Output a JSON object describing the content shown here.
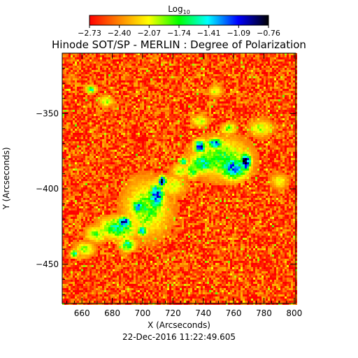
{
  "chart_data": {
    "type": "heatmap",
    "title": "Hinode SOT/SP - MERLIN : Degree of Polarization",
    "xlabel": "X (Arcseconds)",
    "ylabel": "Y (Arcseconds)",
    "timestamp": "22-Dec-2016 11:22:49.605",
    "xlim": [
      647,
      801
    ],
    "ylim": [
      -476,
      -310
    ],
    "x_ticks": [
      660,
      680,
      700,
      720,
      740,
      760,
      780,
      800
    ],
    "y_ticks": [
      -350,
      -400,
      -450
    ],
    "colorbar": {
      "label_base": "Log",
      "label_sub": "10",
      "range": [
        -2.73,
        -0.76
      ],
      "tick_labels": [
        "-2.73",
        "-2.40",
        "-2.07",
        "-1.74",
        "-1.41",
        "-1.09",
        "-0.76"
      ],
      "colors": [
        "#ff0000",
        "#ff8000",
        "#ffff00",
        "#00ff00",
        "#00ffff",
        "#0000ff",
        "#000000"
      ]
    },
    "background_level": -2.55,
    "features": [
      {
        "x": 768,
        "y": -382,
        "rx": 4,
        "ry": 7,
        "level": -0.85
      },
      {
        "x": 760,
        "y": -386,
        "rx": 11,
        "ry": 9,
        "level": -1.3
      },
      {
        "x": 752,
        "y": -380,
        "rx": 20,
        "ry": 14,
        "level": -1.75
      },
      {
        "x": 740,
        "y": -383,
        "rx": 10,
        "ry": 8,
        "level": -1.55
      },
      {
        "x": 738,
        "y": -372,
        "rx": 5,
        "ry": 5,
        "level": -1.15
      },
      {
        "x": 748,
        "y": -370,
        "rx": 6,
        "ry": 4,
        "level": -1.2
      },
      {
        "x": 733,
        "y": -388,
        "rx": 5,
        "ry": 6,
        "level": -1.7
      },
      {
        "x": 725,
        "y": -388,
        "rx": 6,
        "ry": 5,
        "level": -1.9
      },
      {
        "x": 709,
        "y": -405,
        "rx": 6,
        "ry": 10,
        "level": -1.1
      },
      {
        "x": 713,
        "y": -395,
        "rx": 3,
        "ry": 4,
        "level": -0.95
      },
      {
        "x": 703,
        "y": -413,
        "rx": 16,
        "ry": 20,
        "level": -1.8
      },
      {
        "x": 688,
        "y": -422,
        "rx": 5,
        "ry": 4,
        "level": -0.95
      },
      {
        "x": 684,
        "y": -426,
        "rx": 14,
        "ry": 8,
        "level": -1.6
      },
      {
        "x": 697,
        "y": -412,
        "rx": 5,
        "ry": 5,
        "level": -1.25
      },
      {
        "x": 700,
        "y": -428,
        "rx": 4,
        "ry": 4,
        "level": -1.4
      },
      {
        "x": 690,
        "y": -437,
        "rx": 6,
        "ry": 5,
        "level": -1.6
      },
      {
        "x": 670,
        "y": -430,
        "rx": 8,
        "ry": 6,
        "level": -1.85
      },
      {
        "x": 662,
        "y": -440,
        "rx": 7,
        "ry": 5,
        "level": -1.9
      },
      {
        "x": 655,
        "y": -443,
        "rx": 3,
        "ry": 3,
        "level": -1.5
      },
      {
        "x": 666,
        "y": -334,
        "rx": 4,
        "ry": 3,
        "level": -1.6
      },
      {
        "x": 676,
        "y": -342,
        "rx": 5,
        "ry": 4,
        "level": -1.95
      },
      {
        "x": 748,
        "y": -335,
        "rx": 5,
        "ry": 4,
        "level": -2.0
      },
      {
        "x": 738,
        "y": -355,
        "rx": 6,
        "ry": 4,
        "level": -1.95
      },
      {
        "x": 727,
        "y": -382,
        "rx": 3,
        "ry": 3,
        "level": -1.5
      },
      {
        "x": 720,
        "y": -398,
        "rx": 9,
        "ry": 8,
        "level": -2.0
      },
      {
        "x": 778,
        "y": -360,
        "rx": 8,
        "ry": 6,
        "level": -1.95
      },
      {
        "x": 790,
        "y": -395,
        "rx": 6,
        "ry": 5,
        "level": -2.0
      },
      {
        "x": 757,
        "y": -360,
        "rx": 5,
        "ry": 4,
        "level": -1.8
      }
    ]
  }
}
